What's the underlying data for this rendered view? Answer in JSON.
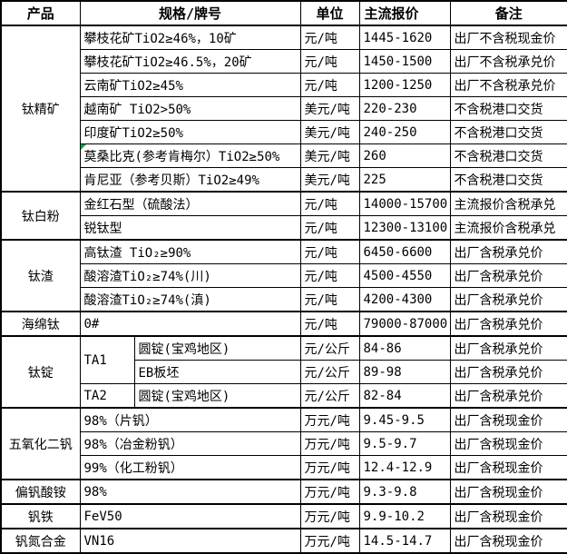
{
  "colors": {
    "border": "#000000",
    "background": "#ffffff",
    "text": "#000000",
    "error_marker_green": "#00a550"
  },
  "table": {
    "header": {
      "columns": [
        "产品",
        "规格/牌号",
        "单位",
        "主流报价",
        "备注"
      ]
    },
    "sections": [
      {
        "product": "钛精矿",
        "rows": [
          {
            "spec": "攀枝花矿TiO2≥46%，10矿",
            "unit": "元/吨",
            "price": "1445-1620",
            "note": "出厂不含税现金价"
          },
          {
            "spec": "攀枝花矿TiO2≥46.5%，20矿",
            "unit": "元/吨",
            "price": "1450-1500",
            "note": "出厂不含税承兑价"
          },
          {
            "spec": "云南矿TiO2≥45%",
            "unit": "元/吨",
            "price": "1200-1250",
            "note": "出厂不含税承兑价"
          },
          {
            "spec": "越南矿 TiO2>50%",
            "unit": "美元/吨",
            "price": "220-230",
            "note": "不含税港口交货"
          },
          {
            "spec": "印度矿TiO2≥50%",
            "unit": "美元/吨",
            "price": "240-250",
            "note": "不含税港口交货"
          },
          {
            "spec": "莫桑比克(参考肯梅尔）TiO2≥50%",
            "unit": "美元/吨",
            "price": "260",
            "note": "不含税港口交货",
            "marker": true
          },
          {
            "spec": "肯尼亚（参考贝斯）TiO2≥49%",
            "unit": "美元/吨",
            "price": "225",
            "note": "不含税港口交货"
          }
        ]
      },
      {
        "product": "钛白粉",
        "rows": [
          {
            "spec": "金红石型（硫酸法）",
            "unit": "元/吨",
            "price": "14000-15700",
            "note": "主流报价含税承兑"
          },
          {
            "spec": "锐钛型",
            "unit": "元/吨",
            "price": "12300-13100",
            "note": "主流报价含税承兑"
          }
        ]
      },
      {
        "product": "钛渣",
        "rows": [
          {
            "spec": "高钛渣 TiO₂≥90%",
            "unit": "元/吨",
            "price": "6450-6600",
            "note": "出厂含税承兑价"
          },
          {
            "spec": "酸溶渣TiO₂≥74%(川)",
            "unit": "元/吨",
            "price": "4500-4550",
            "note": "出厂含税承兑价"
          },
          {
            "spec": "酸溶渣TiO₂≥74%(滇)",
            "unit": "元/吨",
            "price": "4200-4300",
            "note": "出厂含税承兑价"
          }
        ]
      },
      {
        "product": "海绵钛",
        "rows": [
          {
            "spec": "0#",
            "unit": "元/吨",
            "price": "79000-87000",
            "note": "出厂含税承兑价"
          }
        ]
      },
      {
        "product": "钛锭",
        "rows": [
          {
            "grade": "TA1",
            "grade_rows": 2,
            "spec": "圆锭(宝鸡地区)",
            "unit": "元/公斤",
            "price": "84-86",
            "note": "出厂含税承兑价"
          },
          {
            "under_grade": true,
            "spec": "EB板坯",
            "unit": "元/公斤",
            "price": "89-98",
            "note": "出厂含税承兑价"
          },
          {
            "grade": "TA2",
            "grade_rows": 1,
            "spec": "圆锭(宝鸡地区)",
            "unit": "元/公斤",
            "price": "82-84",
            "note": "出厂含税承兑价"
          }
        ]
      },
      {
        "product": "五氧化二钒",
        "rows": [
          {
            "spec": "98%（片钒）",
            "unit": "万元/吨",
            "price": "9.45-9.5",
            "note": "出厂含税现金价"
          },
          {
            "spec": "98%（冶金粉钒）",
            "unit": "万元/吨",
            "price": "9.5-9.7",
            "note": "出厂含税现金价"
          },
          {
            "spec": "99%（化工粉钒）",
            "unit": "万元/吨",
            "price": "12.4-12.9",
            "note": "出厂含税现金价"
          }
        ]
      },
      {
        "product": "偏钒酸铵",
        "rows": [
          {
            "spec": "98%",
            "unit": "万元/吨",
            "price": "9.3-9.8",
            "note": "出厂含税现金价"
          }
        ]
      },
      {
        "product": "钒铁",
        "rows": [
          {
            "spec": "FeV50",
            "unit": "万元/吨",
            "price": "9.9-10.2",
            "note": "出厂含税现金价"
          }
        ]
      },
      {
        "product": "钒氮合金",
        "rows": [
          {
            "spec": "VN16",
            "unit": "万元/吨",
            "price": "14.5-14.7",
            "note": "出厂含税现金价"
          }
        ]
      }
    ]
  }
}
